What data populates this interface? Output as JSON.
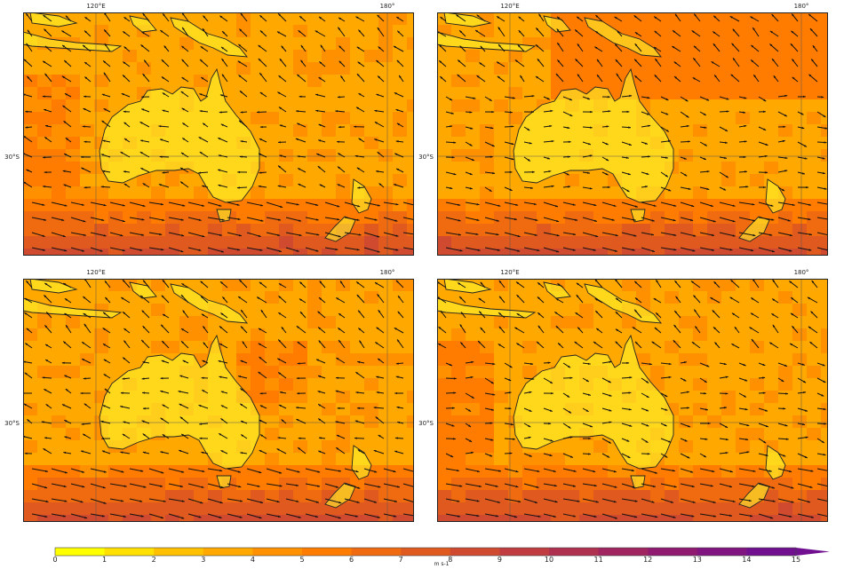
{
  "panels": [
    {
      "id": "top-left"
    },
    {
      "id": "top-right"
    },
    {
      "id": "bottom-left"
    },
    {
      "id": "bottom-right"
    }
  ],
  "axes": {
    "lon_labels": [
      "120°E",
      "180°"
    ],
    "lat_label": "30°S"
  },
  "colorbar": {
    "ticks": [
      "0",
      "1",
      "2",
      "3",
      "4",
      "5",
      "6",
      "7",
      "8",
      "9",
      "10",
      "11",
      "12",
      "13",
      "14",
      "15"
    ],
    "unit": "m s-1",
    "colors": [
      "#ffff00",
      "#ffe000",
      "#ffc000",
      "#ffa800",
      "#ff9000",
      "#ff7c00",
      "#f06a10",
      "#e05a20",
      "#d04a30",
      "#c03c40",
      "#b03050",
      "#a02460",
      "#901a70",
      "#801480",
      "#701090"
    ]
  },
  "colors": {
    "land": "#ffff33",
    "coast": "#222222",
    "arrow": "#111111",
    "grid": "#555555"
  }
}
